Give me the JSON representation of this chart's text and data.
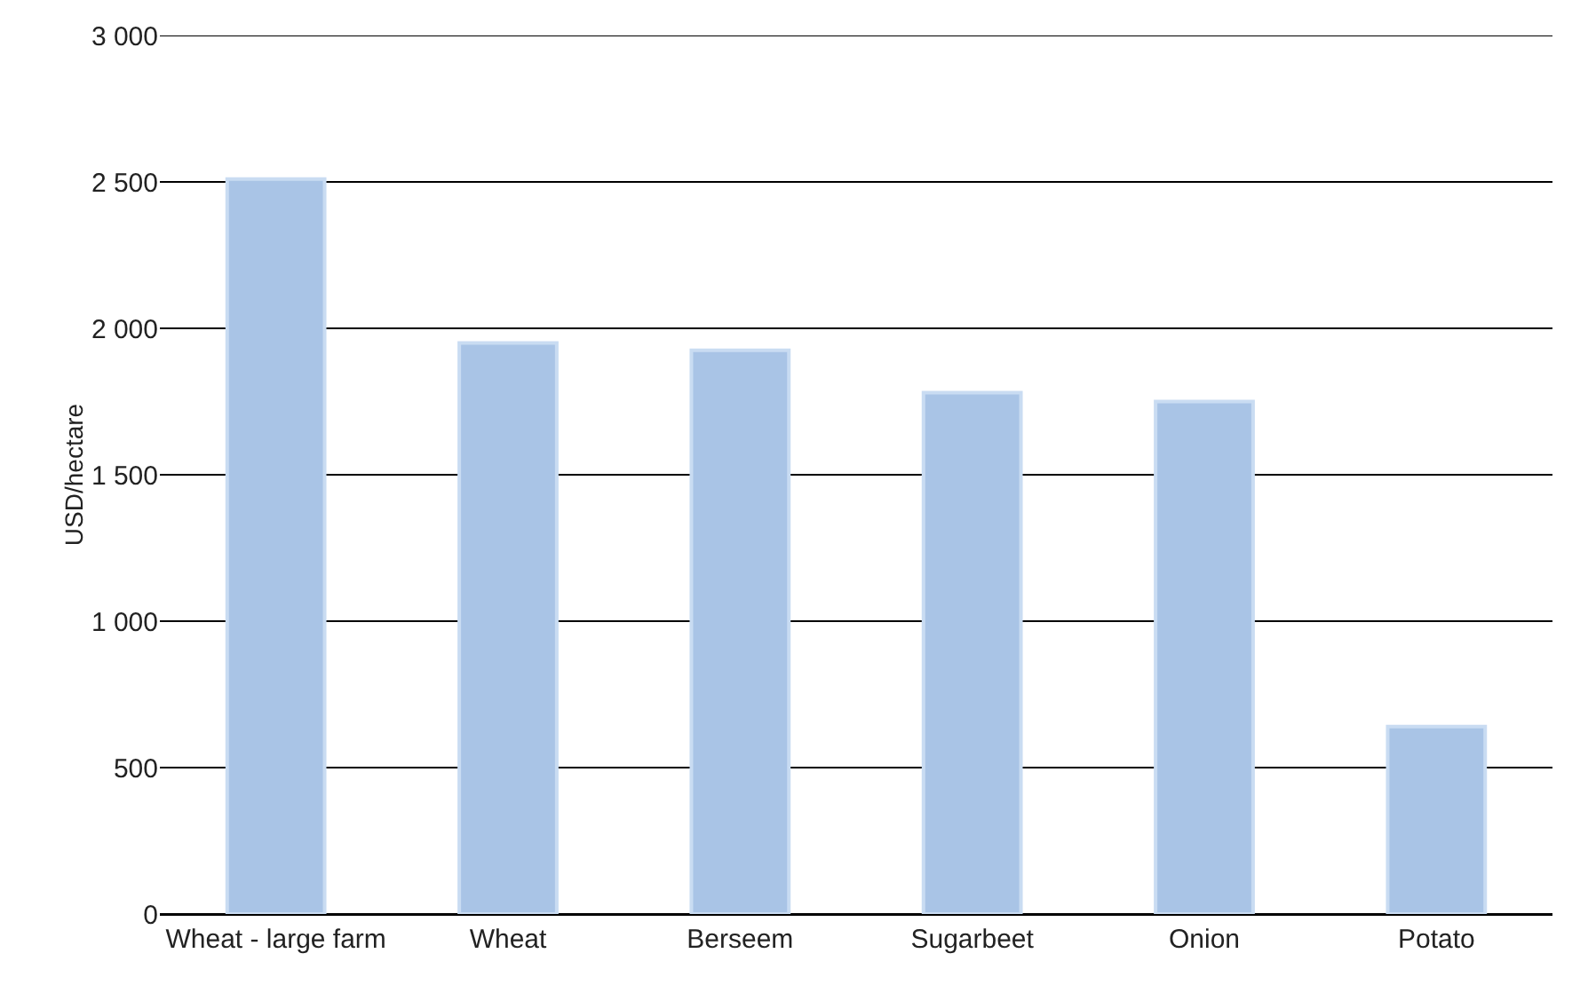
{
  "chart_data": {
    "type": "bar",
    "ylabel": "USD/hectare",
    "categories": [
      "Wheat - large farm",
      "Wheat",
      "Berseem",
      "Sugarbeet",
      "Onion",
      "Potato"
    ],
    "values": [
      2510,
      1950,
      1925,
      1780,
      1750,
      640
    ],
    "color": "#a9c4e6",
    "ylim": [
      0,
      3000
    ],
    "yticks": [
      0,
      500,
      {
        "value": 1000,
        "label": "1 000"
      },
      {
        "value": 1500,
        "label": "1 500"
      },
      {
        "value": 2000,
        "label": "2 000"
      },
      {
        "value": 2500,
        "label": "2 500"
      },
      {
        "value": 3000,
        "label": "3 000"
      }
    ],
    "grid": "y"
  }
}
